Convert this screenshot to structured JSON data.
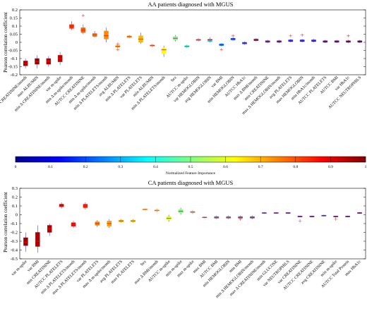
{
  "colors": {
    "q1": "#1e2b95",
    "q2": "#35aee0",
    "q3": "#8ccb4e",
    "q4": "#e8c127",
    "q5": "#c4161c",
    "outlier": "#e04040",
    "whisker": "#6060d0"
  },
  "colorbar": {
    "label": "Normalized Feature Importance",
    "ticks": [
      "0",
      "0.1",
      "0.2",
      "0.3",
      "0.4",
      "0.5",
      "0.6",
      "0.7",
      "0.8",
      "0.9",
      "1"
    ],
    "colormap": "jet"
  },
  "chart_data": [
    {
      "type": "box",
      "title": "AA patients diagnosed with MGUS",
      "ylabel": "Pearson correlation coefficient",
      "xlabel": "",
      "ylim": [
        -0.2,
        0.2
      ],
      "yticks": [
        "-0.2",
        "-0.15",
        "-0.1",
        "-0.05",
        "0",
        "0.05",
        "0.1",
        "0.15",
        "0.2"
      ],
      "categories": [
        "max Δ CREATININE/month",
        "max ALBUMIN",
        "min Δ CREATININE/month",
        "var m-spike",
        "min Δ m-spike/month",
        "AUTCC CREATININE",
        "min Δ m-spike/month",
        "min Δ PLATELETS/month",
        "avg ALBUMIN",
        "min Δ PLATELETS",
        "var PLATELETS",
        "min ALBUMIN",
        "min Δ PLATELETS/month",
        "Sex",
        "AUTCC m-spike",
        "var HEMOGLOBIN",
        "avg HEMOGLOBIN",
        "var BMI",
        "min HEMOGLOBIN",
        "AUTCC HbA1c",
        "max Δ BMI/month",
        "min CREATININE",
        "max Δ HEMOGLOBIN/month",
        "avg PLATELETS",
        "max HEMOGLOBIN",
        "min HbA1c/month",
        "AUTCC PLATELETS",
        "AUTCC BMI",
        "var HbA1c",
        "AUTCC NEUTROPHILS"
      ],
      "median": [
        -0.13,
        -0.12,
        -0.115,
        -0.1,
        0.1,
        0.075,
        0.045,
        0.04,
        -0.025,
        0.035,
        0.02,
        -0.02,
        -0.045,
        0.025,
        -0.025,
        0.015,
        0.015,
        -0.015,
        0.02,
        -0.005,
        0.015,
        0.005,
        0.005,
        0.01,
        0.01,
        0.01,
        0.005,
        0.005,
        0.005,
        0.005
      ],
      "q1": [
        -0.145,
        -0.135,
        -0.135,
        -0.12,
        0.085,
        0.06,
        0.035,
        0.02,
        -0.03,
        0.03,
        0.0,
        -0.025,
        -0.07,
        0.015,
        -0.03,
        0.01,
        0.005,
        -0.02,
        0.015,
        -0.01,
        0.01,
        0.0,
        0.0,
        0.005,
        0.005,
        0.005,
        0.0,
        0.0,
        0.0,
        0.0
      ],
      "q3": [
        -0.115,
        -0.1,
        -0.1,
        -0.08,
        0.11,
        0.09,
        0.055,
        0.07,
        -0.02,
        0.04,
        0.04,
        -0.015,
        -0.035,
        0.035,
        -0.02,
        0.02,
        0.02,
        -0.01,
        0.025,
        0.0,
        0.02,
        0.01,
        0.01,
        0.015,
        0.015,
        0.015,
        0.01,
        0.01,
        0.01,
        0.01
      ],
      "whisker_low": [
        -0.16,
        -0.16,
        -0.15,
        -0.14,
        0.075,
        0.05,
        0.03,
        0.0,
        -0.035,
        0.025,
        -0.01,
        -0.03,
        -0.09,
        0.005,
        -0.035,
        0.005,
        0.0,
        -0.025,
        0.01,
        -0.015,
        0.005,
        -0.005,
        -0.005,
        0.0,
        0.0,
        0.0,
        -0.005,
        -0.005,
        -0.005,
        -0.005
      ],
      "whisker_high": [
        -0.1,
        -0.08,
        -0.085,
        -0.06,
        0.13,
        0.11,
        0.07,
        0.09,
        -0.015,
        0.045,
        0.06,
        -0.01,
        -0.02,
        0.045,
        -0.015,
        0.025,
        0.03,
        -0.005,
        0.03,
        0.005,
        0.025,
        0.015,
        0.015,
        0.02,
        0.02,
        0.02,
        0.015,
        0.015,
        0.015,
        0.015
      ],
      "outliers": [
        [],
        [],
        [],
        [],
        [],
        [
          0.165
        ],
        [],
        [],
        [
          -0.045,
          -0.01
        ],
        [],
        [],
        [],
        [],
        [],
        [],
        [],
        [],
        [
          -0.045
        ],
        [
          0.04
        ],
        [],
        [],
        [],
        [],
        [
          0.04
        ],
        [
          0.045
        ],
        [],
        [],
        [],
        [
          0.04
        ],
        []
      ],
      "importance": [
        0.96,
        0.97,
        0.95,
        0.94,
        0.83,
        0.78,
        0.76,
        0.74,
        0.72,
        0.72,
        0.7,
        0.7,
        0.62,
        0.48,
        0.42,
        0.35,
        0.32,
        0.22,
        0.18,
        0.17,
        0.16,
        0.15,
        0.14,
        0.12,
        0.11,
        0.1,
        0.09,
        0.08,
        0.06,
        0.05
      ]
    },
    {
      "type": "box",
      "title": "CA patients diagnosed with MGUS",
      "ylabel": "Pearson correlation coefficient",
      "xlabel": "",
      "ylim": [
        -0.5,
        0.3
      ],
      "yticks": [
        "-0.5",
        "-0.4",
        "-0.3",
        "-0.2",
        "-0.1",
        "0",
        "0.1",
        "0.2",
        "0.3"
      ],
      "categories": [
        "var m-spike",
        "var BMI",
        "min CREATININE",
        "AUTCC PLATELETS",
        "min Δ PLATELETS/month",
        "max Δ PLATELETS/month",
        "var PLATELETS",
        "max Δ m-spike/month",
        "avg PLATELETS",
        "max PLATELETS",
        "Sex",
        "max Δ BMI/month",
        "AUTCC m-spike",
        "min m-spike",
        "max m-spike",
        "max BMI",
        "AUTCC BMI",
        "min HEMOGLOBIN",
        "min BMI",
        "min Δ HEMOGLOBIN/month",
        "max Δ CREATININE/month",
        "min GLUCOSE",
        "var NEUTROPHILS",
        "var CREATININE",
        "AUTCC CREATININE",
        "avg CREATININE",
        "min m-spike",
        "AUTCC Total Protein",
        "max HbA1c"
      ],
      "median": [
        -0.31,
        -0.3,
        -0.16,
        0.1,
        -0.11,
        0.1,
        -0.1,
        -0.1,
        -0.07,
        -0.07,
        0.06,
        0.05,
        -0.04,
        0.04,
        0.03,
        -0.03,
        -0.03,
        -0.03,
        -0.03,
        -0.03,
        0.02,
        0.02,
        0.02,
        -0.02,
        -0.02,
        -0.01,
        -0.02,
        -0.02,
        0.02
      ],
      "q1": [
        -0.35,
        -0.36,
        -0.2,
        0.09,
        -0.13,
        0.08,
        -0.12,
        -0.13,
        -0.08,
        -0.08,
        0.055,
        0.04,
        -0.06,
        0.02,
        0.02,
        -0.035,
        -0.04,
        -0.04,
        -0.04,
        -0.04,
        0.015,
        0.015,
        0.015,
        -0.025,
        -0.025,
        -0.015,
        -0.025,
        -0.025,
        0.015
      ],
      "q3": [
        -0.26,
        -0.2,
        -0.12,
        0.12,
        -0.09,
        0.12,
        -0.08,
        -0.07,
        -0.06,
        -0.06,
        0.065,
        0.06,
        -0.02,
        0.06,
        0.04,
        -0.025,
        -0.02,
        -0.02,
        -0.02,
        -0.02,
        0.025,
        0.025,
        0.025,
        -0.015,
        -0.015,
        -0.005,
        -0.015,
        -0.015,
        0.025
      ],
      "whisker_low": [
        -0.42,
        -0.43,
        -0.24,
        0.07,
        -0.15,
        0.06,
        -0.14,
        -0.15,
        -0.09,
        -0.09,
        0.05,
        0.03,
        -0.08,
        0.0,
        0.01,
        -0.04,
        -0.05,
        -0.05,
        -0.05,
        -0.05,
        0.01,
        0.01,
        0.01,
        -0.03,
        -0.03,
        -0.02,
        -0.03,
        -0.03,
        0.01
      ],
      "whisker_high": [
        -0.2,
        -0.12,
        -0.1,
        0.14,
        -0.07,
        0.14,
        -0.06,
        -0.05,
        -0.05,
        -0.05,
        0.07,
        0.07,
        0.0,
        0.08,
        0.05,
        -0.02,
        -0.01,
        -0.01,
        -0.01,
        -0.01,
        0.03,
        0.03,
        0.03,
        -0.01,
        -0.01,
        0.0,
        -0.01,
        -0.01,
        0.03
      ],
      "outliers": [
        [],
        [],
        [],
        [],
        [],
        [],
        [],
        [],
        [],
        [],
        [],
        [],
        [],
        [],
        [],
        [],
        [],
        [],
        [
          -0.05
        ],
        [],
        [],
        [],
        [],
        [
          -0.07
        ],
        [],
        [],
        [
          -0.05
        ],
        [],
        []
      ],
      "importance": [
        0.97,
        0.96,
        0.95,
        0.92,
        0.87,
        0.85,
        0.75,
        0.72,
        0.7,
        0.68,
        0.66,
        0.62,
        0.6,
        0.5,
        0.45,
        0.3,
        0.28,
        0.28,
        0.26,
        0.25,
        0.2,
        0.18,
        0.15,
        0.12,
        0.1,
        0.09,
        0.08,
        0.06,
        0.04
      ]
    }
  ]
}
